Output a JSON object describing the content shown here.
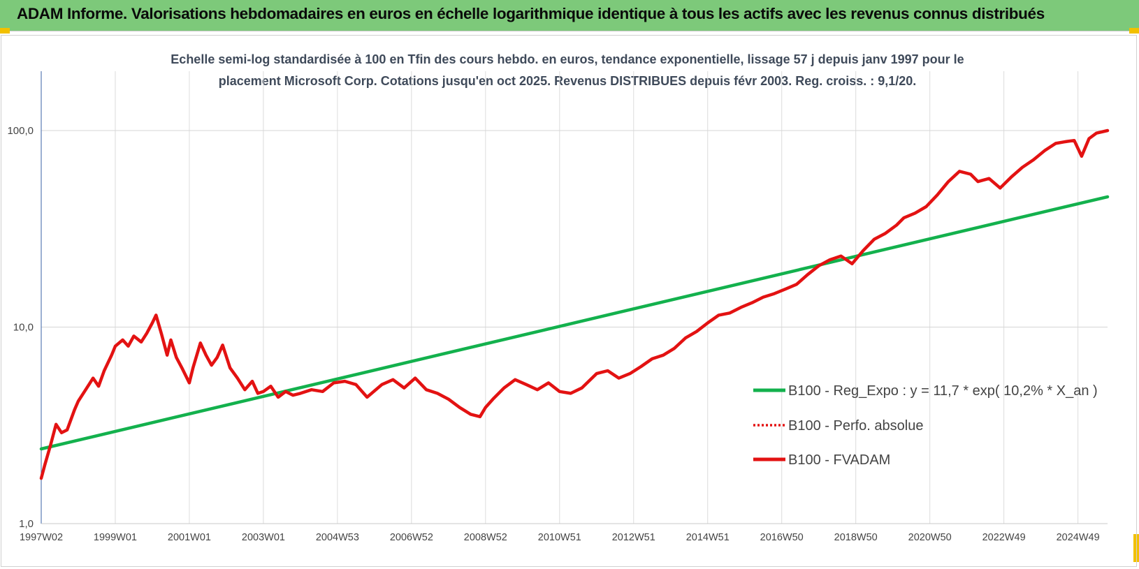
{
  "banner": {
    "title": "ADAM Informe. Valorisations hebdomadaires en euros en échelle logarithmique identique à tous les actifs avec les revenus connus distribués",
    "color": "#7dc97a"
  },
  "chart_data": {
    "type": "line",
    "subtitle_line1": "Echelle semi-log standardisée à 100 en Tfin des cours hebdo. en euros, tendance exponentielle, lissage 57 j depuis janv 1997 pour le",
    "subtitle_line2": "placement Microsoft Corp. Cotations jusqu'en oct 2025. Revenus DISTRIBUES depuis févr 2003. Reg. croiss. : 9,1/20.",
    "yscale": "log",
    "ylim": [
      1,
      100
    ],
    "yticks": [
      {
        "value": 1,
        "label": "1,0"
      },
      {
        "value": 10,
        "label": "10,0"
      },
      {
        "value": 100,
        "label": "100,0"
      }
    ],
    "xlim": [
      1997.0,
      2025.8
    ],
    "xticks": [
      {
        "value": 1997.0,
        "label": "1997W02"
      },
      {
        "value": 1999.0,
        "label": "1999W01"
      },
      {
        "value": 2001.0,
        "label": "2001W01"
      },
      {
        "value": 2003.0,
        "label": "2003W01"
      },
      {
        "value": 2005.0,
        "label": "2004W53"
      },
      {
        "value": 2007.0,
        "label": "2006W52"
      },
      {
        "value": 2009.0,
        "label": "2008W52"
      },
      {
        "value": 2011.0,
        "label": "2010W51"
      },
      {
        "value": 2013.0,
        "label": "2012W51"
      },
      {
        "value": 2015.0,
        "label": "2014W51"
      },
      {
        "value": 2017.0,
        "label": "2016W50"
      },
      {
        "value": 2019.0,
        "label": "2018W50"
      },
      {
        "value": 2021.0,
        "label": "2020W50"
      },
      {
        "value": 2023.0,
        "label": "2022W49"
      },
      {
        "value": 2025.0,
        "label": "2024W49"
      }
    ],
    "grid": true,
    "legend_position": "right",
    "series": [
      {
        "name": "B100 - Reg_Expo : y = 11,7 * exp( 10,2% *  X_an )",
        "color": "#13b14d",
        "style": "solid",
        "x": [
          1997.0,
          2025.8
        ],
        "y": [
          2.4,
          46
        ]
      },
      {
        "name": "B100 - Perfo. absolue",
        "color": "#e31212",
        "style": "dotted",
        "x": [],
        "y": []
      },
      {
        "name": "B100 - FVADAM",
        "color": "#e31212",
        "style": "solid",
        "x": [
          1997.0,
          1997.1,
          1997.25,
          1997.4,
          1997.55,
          1997.7,
          1997.9,
          1998.0,
          1998.2,
          1998.4,
          1998.55,
          1998.7,
          1998.9,
          1999.0,
          1999.2,
          1999.35,
          1999.5,
          1999.7,
          1999.85,
          2000.0,
          2000.1,
          2000.25,
          2000.4,
          2000.5,
          2000.65,
          2000.8,
          2001.0,
          2001.1,
          2001.3,
          2001.45,
          2001.6,
          2001.75,
          2001.9,
          2002.1,
          2002.3,
          2002.5,
          2002.7,
          2002.85,
          2003.0,
          2003.2,
          2003.4,
          2003.6,
          2003.8,
          2004.0,
          2004.3,
          2004.6,
          2004.9,
          2005.2,
          2005.5,
          2005.8,
          2006.2,
          2006.5,
          2006.8,
          2007.1,
          2007.4,
          2007.7,
          2008.0,
          2008.3,
          2008.6,
          2008.85,
          2009.0,
          2009.2,
          2009.5,
          2009.8,
          2010.1,
          2010.4,
          2010.7,
          2011.0,
          2011.3,
          2011.6,
          2012.0,
          2012.3,
          2012.6,
          2012.9,
          2013.2,
          2013.5,
          2013.8,
          2014.1,
          2014.4,
          2014.7,
          2015.0,
          2015.3,
          2015.6,
          2015.9,
          2016.2,
          2016.5,
          2016.8,
          2017.1,
          2017.4,
          2017.7,
          2018.0,
          2018.3,
          2018.6,
          2018.9,
          2019.2,
          2019.5,
          2019.8,
          2020.1,
          2020.3,
          2020.6,
          2020.9,
          2021.2,
          2021.5,
          2021.8,
          2022.1,
          2022.3,
          2022.6,
          2022.9,
          2023.2,
          2023.5,
          2023.8,
          2024.1,
          2024.4,
          2024.7,
          2024.9,
          2025.1,
          2025.3,
          2025.5,
          2025.8
        ],
        "y": [
          1.7,
          2.0,
          2.5,
          3.2,
          2.9,
          3.0,
          3.8,
          4.2,
          4.8,
          5.5,
          5.0,
          6.0,
          7.2,
          8.0,
          8.6,
          8.0,
          9.0,
          8.4,
          9.3,
          10.5,
          11.5,
          9.2,
          7.2,
          8.6,
          7.0,
          6.2,
          5.2,
          6.2,
          8.3,
          7.2,
          6.4,
          7.0,
          8.1,
          6.2,
          5.5,
          4.8,
          5.3,
          4.6,
          4.7,
          5.0,
          4.4,
          4.7,
          4.5,
          4.6,
          4.8,
          4.7,
          5.2,
          5.3,
          5.1,
          4.4,
          5.1,
          5.4,
          4.9,
          5.5,
          4.8,
          4.6,
          4.3,
          3.9,
          3.6,
          3.5,
          3.9,
          4.3,
          4.9,
          5.4,
          5.1,
          4.8,
          5.2,
          4.7,
          4.6,
          4.9,
          5.8,
          6.0,
          5.5,
          5.8,
          6.3,
          6.9,
          7.2,
          7.8,
          8.8,
          9.5,
          10.5,
          11.5,
          11.8,
          12.6,
          13.3,
          14.2,
          14.8,
          15.6,
          16.5,
          18.5,
          20.5,
          22.0,
          23.0,
          21.0,
          24.5,
          28.0,
          30.0,
          33.0,
          36.0,
          38.0,
          41.0,
          47.0,
          55.0,
          62.0,
          60.0,
          55.0,
          57.0,
          51.0,
          58.0,
          65.0,
          71.0,
          79.0,
          86.0,
          88.0,
          89.0,
          74.0,
          91.0,
          97.0,
          100.0
        ]
      }
    ]
  }
}
